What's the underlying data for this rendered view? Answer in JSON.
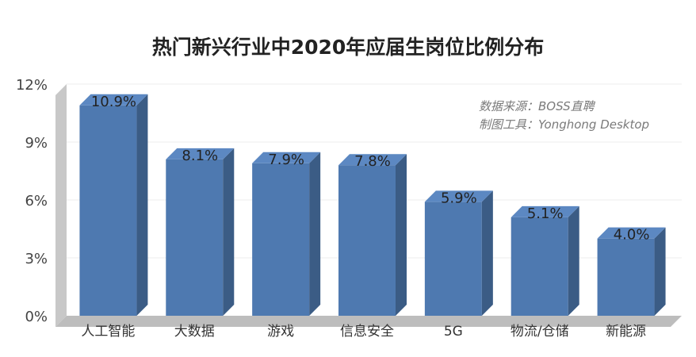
{
  "chart_data": {
    "type": "bar",
    "title": "热门新兴行业中2020年应届生岗位比例分布",
    "categories": [
      "人工智能",
      "大数据",
      "游戏",
      "信息安全",
      "5G",
      "物流/仓储",
      "新能源"
    ],
    "values": [
      10.9,
      8.1,
      7.9,
      7.8,
      5.9,
      5.1,
      4.0
    ],
    "value_labels": [
      "10.9%",
      "8.1%",
      "7.9%",
      "7.8%",
      "5.9%",
      "5.1%",
      "4.0%"
    ],
    "ylim": [
      0,
      12
    ],
    "yticks": [
      0,
      3,
      6,
      9,
      12
    ],
    "ytick_labels": [
      "0%",
      "3%",
      "6%",
      "9%",
      "12%"
    ],
    "grid": true,
    "style": "3d-bar",
    "colors": {
      "bar_front": "#4e79b0",
      "bar_side": "#3b5c85",
      "bar_top": "#5c88c2",
      "wall": "#c8c8c8",
      "floor": "#bdbdbd"
    },
    "annotations": [
      "数据来源：BOSS直聘",
      "制图工具：Yonghong Desktop"
    ]
  }
}
